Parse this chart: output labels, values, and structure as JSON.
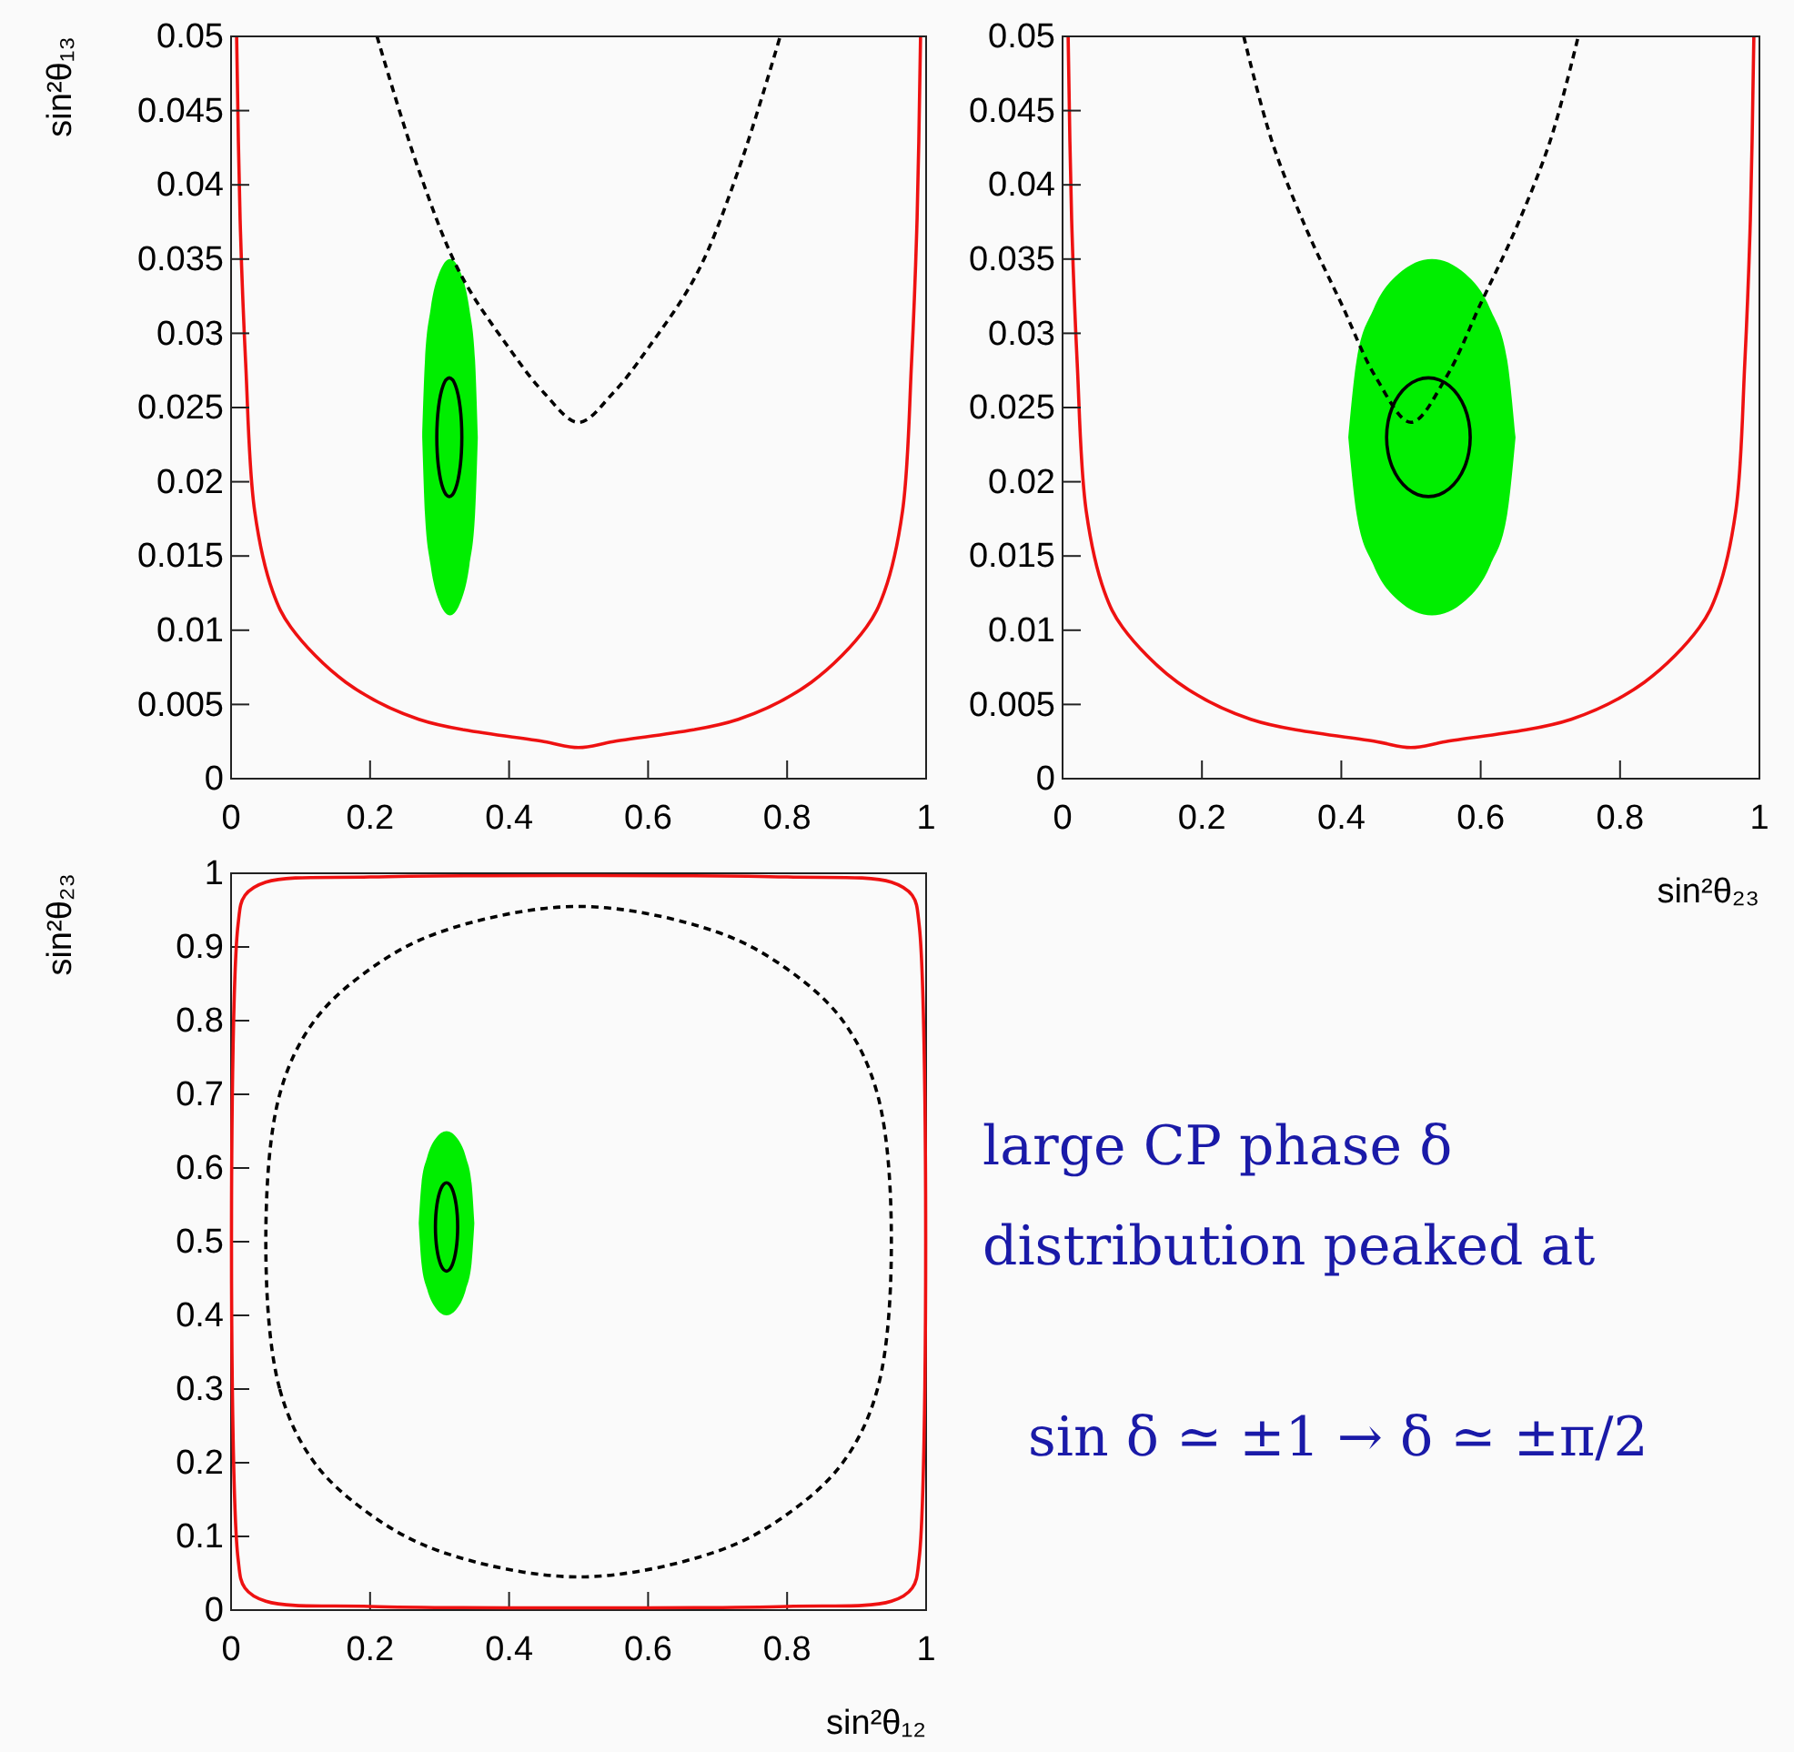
{
  "chart_data": [
    {
      "type": "line",
      "ylabel": "sin²θ₁₃",
      "xlim": [
        0,
        1
      ],
      "ylim": [
        0,
        0.05
      ],
      "xticks": [
        0,
        0.2,
        0.4,
        0.6,
        0.8,
        1
      ],
      "yticks": [
        0,
        0.005,
        0.01,
        0.015,
        0.02,
        0.025,
        0.03,
        0.035,
        0.04,
        0.045,
        0.05
      ],
      "line_style": "solid",
      "grid": false,
      "series": [
        {
          "color": "#ee1111",
          "x": [
            0.008,
            0.013,
            0.021,
            0.034,
            0.06,
            0.086,
            0.165,
            0.27,
            0.45,
            0.5,
            0.55,
            0.73,
            0.835,
            0.914,
            0.94,
            0.966,
            0.979,
            0.987,
            0.992
          ],
          "values": [
            0.05,
            0.0377,
            0.028,
            0.018,
            0.0126,
            0.0102,
            0.0065,
            0.004,
            0.0025,
            0.0021,
            0.0025,
            0.004,
            0.0065,
            0.0102,
            0.0126,
            0.018,
            0.028,
            0.0377,
            0.05
          ]
        },
        {
          "color": "#000000",
          "line_style": "dashed",
          "x": [
            0.21,
            0.27,
            0.33,
            0.4,
            0.45,
            0.5,
            0.55,
            0.6,
            0.67,
            0.73,
            0.79
          ],
          "values": [
            0.05,
            0.041,
            0.034,
            0.029,
            0.026,
            0.024,
            0.026,
            0.029,
            0.034,
            0.041,
            0.05
          ]
        },
        {
          "color": "#00ee00",
          "x": [
            0.275,
            0.279,
            0.287,
            0.299,
            0.315,
            0.331,
            0.343,
            0.351,
            0.355
          ],
          "values": [
            null,
            null,
            null,
            null,
            null,
            null,
            null,
            null,
            null
          ],
          "lower": [
            0.023,
            0.0178,
            0.0144,
            0.012,
            0.011,
            0.012,
            0.0144,
            0.0178,
            0.023
          ],
          "upper": [
            0.023,
            0.0282,
            0.0316,
            0.034,
            0.035,
            0.034,
            0.0316,
            0.0282,
            0.023
          ]
        }
      ]
    },
    {
      "type": "line",
      "xlabel": "sin²θ₂₃",
      "xlim": [
        0,
        1
      ],
      "ylim": [
        0,
        0.05
      ],
      "xticks": [
        0,
        0.2,
        0.4,
        0.6,
        0.8,
        1
      ],
      "yticks": [
        0,
        0.005,
        0.01,
        0.015,
        0.02,
        0.025,
        0.03,
        0.035,
        0.04,
        0.045,
        0.05
      ],
      "line_style": "solid",
      "grid": false,
      "series": [
        {
          "color": "#ee1111",
          "x": [
            0.008,
            0.013,
            0.021,
            0.034,
            0.06,
            0.086,
            0.165,
            0.27,
            0.45,
            0.5,
            0.55,
            0.73,
            0.835,
            0.914,
            0.94,
            0.966,
            0.979,
            0.987,
            0.992
          ],
          "values": [
            0.05,
            0.0377,
            0.028,
            0.018,
            0.0126,
            0.0102,
            0.0065,
            0.004,
            0.0025,
            0.0021,
            0.0025,
            0.004,
            0.0065,
            0.0102,
            0.0126,
            0.018,
            0.028,
            0.0377,
            0.05
          ]
        },
        {
          "color": "#000000",
          "line_style": "dashed",
          "x": [
            0.26,
            0.3,
            0.35,
            0.4,
            0.45,
            0.5,
            0.55,
            0.6,
            0.65,
            0.7,
            0.74
          ],
          "values": [
            0.05,
            0.043,
            0.037,
            0.032,
            0.027,
            0.024,
            0.027,
            0.032,
            0.037,
            0.043,
            0.05
          ]
        },
        {
          "color": "#00ee00",
          "x": [
            0.41,
            0.422,
            0.446,
            0.482,
            0.53,
            0.578,
            0.614,
            0.638,
            0.65
          ],
          "values": [
            null,
            null,
            null,
            null,
            null,
            null,
            null,
            null,
            null
          ],
          "lower": [
            0.023,
            0.0178,
            0.0144,
            0.012,
            0.011,
            0.012,
            0.0144,
            0.0178,
            0.023
          ],
          "upper": [
            0.023,
            0.0282,
            0.0316,
            0.034,
            0.035,
            0.034,
            0.0316,
            0.0282,
            0.023
          ]
        }
      ]
    },
    {
      "type": "line",
      "xlabel": "sin²θ₁₂",
      "ylabel": "sin²θ₂₃",
      "xlim": [
        0,
        1
      ],
      "ylim": [
        0,
        1
      ],
      "xticks": [
        0,
        0.2,
        0.4,
        0.6,
        0.8,
        1
      ],
      "yticks": [
        0,
        0.1,
        0.2,
        0.3,
        0.4,
        0.5,
        0.6,
        0.7,
        0.8,
        0.9,
        1
      ],
      "grid": false,
      "series": [
        {
          "color": "#00ee00",
          "x": [
            0.27,
            0.274,
            0.282,
            0.294,
            0.31,
            0.326,
            0.338,
            0.346,
            0.35
          ],
          "values": [
            null,
            null,
            null,
            null,
            null,
            null,
            null,
            null,
            null
          ],
          "lower": [
            0.525,
            0.4705,
            0.4357,
            0.4104,
            0.4,
            0.4104,
            0.4357,
            0.4705,
            0.525
          ],
          "upper": [
            0.525,
            0.5795,
            0.6143,
            0.6396,
            0.65,
            0.6396,
            0.6143,
            0.5795,
            0.525
          ]
        }
      ]
    },
    {
      "type": "other",
      "annotations": [
        "large CP phase δ",
        "distribution peaked at",
        "sin δ ≃ ±1 → δ ≃ ±π/2"
      ]
    }
  ]
}
